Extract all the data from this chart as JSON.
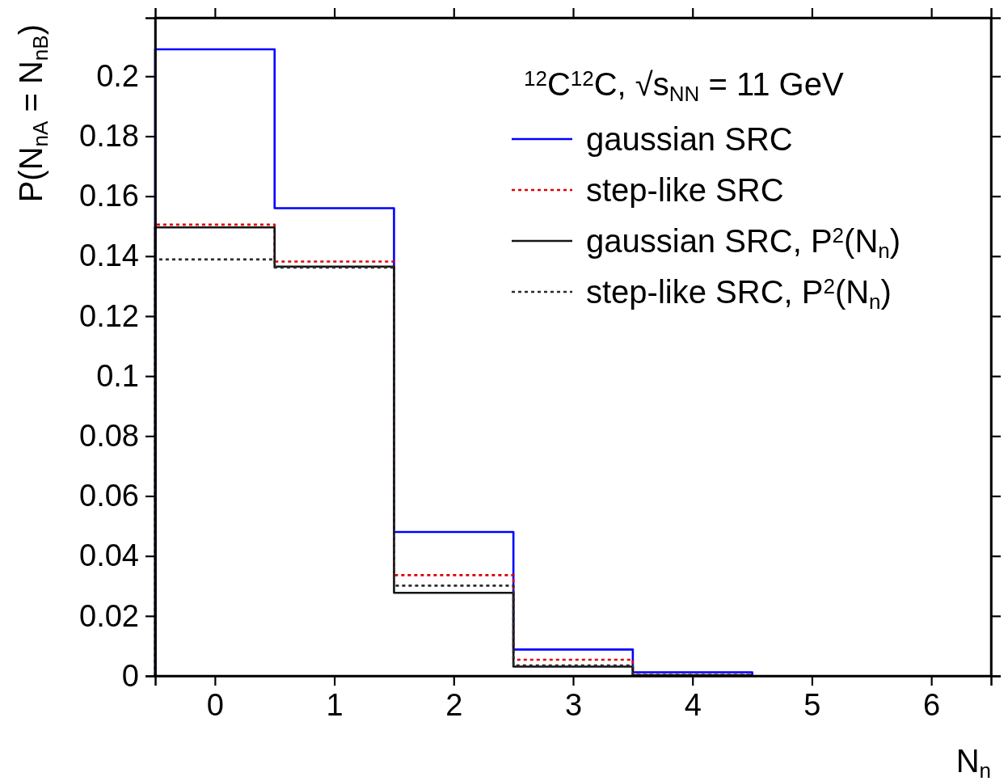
{
  "chart_data": {
    "type": "histogram",
    "legend_title": "$^{12}$C$^{12}$C, √s$_{NN}$ = 11 GeV",
    "xlabel": "N$_{n}$",
    "ylabel": "P(N$_{nA}$ = N$_{nB}$)",
    "bins": [
      -0.5,
      0.5,
      1.5,
      2.5,
      3.5,
      4.5
    ],
    "series": [
      {
        "name": "gaussian SRC",
        "color": "#0000ff",
        "line_style": "solid",
        "values": [
          0.209,
          0.156,
          0.048,
          0.0088,
          0.0012
        ]
      },
      {
        "name": "step-like SRC",
        "color": "#dd0000",
        "line_style": "dotted",
        "values": [
          0.1505,
          0.1382,
          0.0336,
          0.0054,
          0.0003
        ]
      },
      {
        "name": "gaussian SRC, P$^{2}$(N$_{n}$)",
        "color": "#141414",
        "line_style": "solid",
        "values": [
          0.1496,
          0.1365,
          0.0277,
          0.0031,
          0.0002
        ]
      },
      {
        "name": "step-like SRC, P$^{2}$(N$_{n}$)",
        "color": "#2a2a2a",
        "line_style": "dotted",
        "values": [
          0.1389,
          0.1362,
          0.0301,
          0.0035,
          0.0003
        ]
      }
    ],
    "xlim": [
      -0.5,
      6.5
    ],
    "ylim": [
      0,
      0.2195
    ],
    "xticks": [
      0,
      1,
      2,
      3,
      4,
      5,
      6
    ],
    "yticks": [
      0,
      0.02,
      0.04,
      0.06,
      0.08,
      0.1,
      0.12,
      0.14,
      0.16,
      0.18,
      0.2
    ],
    "legend": "top right",
    "grid": false
  }
}
